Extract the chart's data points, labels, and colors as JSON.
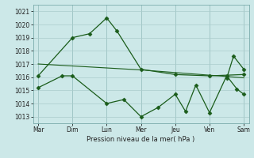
{
  "bg_color": "#cce8e8",
  "grid_color": "#aacccc",
  "line_color": "#1a5c1a",
  "marker_color": "#1a5c1a",
  "xlabel": "Pression niveau de la mer( hPa )",
  "ylim": [
    1012.5,
    1021.5
  ],
  "yticks": [
    1013,
    1014,
    1015,
    1016,
    1017,
    1018,
    1019,
    1020,
    1021
  ],
  "xtick_labels": [
    "Mar",
    "Dim",
    "Lun",
    "Mer",
    "Jeu",
    "Ven",
    "Sam"
  ],
  "xtick_positions": [
    0,
    1,
    2,
    3,
    4,
    5,
    6
  ],
  "series1": {
    "x": [
      0,
      1,
      1.5,
      2,
      2.3,
      3,
      4,
      5,
      6
    ],
    "y": [
      1016.1,
      1019.0,
      1019.3,
      1020.5,
      1019.5,
      1016.6,
      1016.2,
      1016.1,
      1016.2
    ]
  },
  "series2": {
    "x": [
      0,
      1,
      2,
      3,
      4,
      5,
      6
    ],
    "y": [
      1017.0,
      1016.85,
      1016.7,
      1016.55,
      1016.35,
      1016.15,
      1015.95
    ]
  },
  "series3": {
    "x": [
      0,
      0.7,
      1,
      2,
      2.5,
      3,
      3.5,
      4,
      4.3,
      4.6,
      5,
      5.5,
      5.8,
      6
    ],
    "y": [
      1015.2,
      1016.1,
      1016.1,
      1014.0,
      1014.3,
      1013.0,
      1013.7,
      1014.7,
      1013.4,
      1015.4,
      1013.3,
      1016.1,
      1015.1,
      1014.7
    ]
  },
  "series_sam_spike": {
    "x": [
      5.5,
      5.7,
      6.0
    ],
    "y": [
      1015.9,
      1017.6,
      1016.6
    ]
  }
}
